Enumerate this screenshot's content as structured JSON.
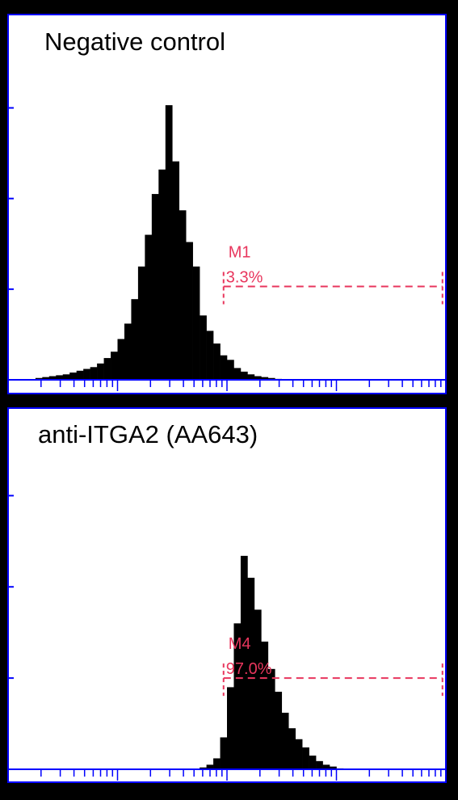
{
  "chart_data": [
    {
      "type": "histogram",
      "title": "Negative control",
      "color": "#000000",
      "frame_color": "#0000ff",
      "marker_color": "#e8365d",
      "bins": [
        64,
        80,
        96,
        112,
        128,
        144,
        160,
        176,
        192,
        208,
        224,
        240,
        256,
        272,
        288,
        304,
        320,
        336,
        352,
        368,
        384,
        400,
        416,
        432,
        448,
        464,
        480,
        496,
        512,
        528,
        544,
        560,
        576,
        592,
        608,
        624,
        640
      ],
      "values": [
        2,
        3,
        4,
        5,
        6,
        8,
        10,
        12,
        14,
        18,
        24,
        31,
        45,
        62,
        89,
        125,
        160,
        205,
        232,
        303,
        241,
        187,
        152,
        125,
        71,
        54,
        40,
        27,
        22,
        13,
        9,
        6,
        4,
        3,
        2,
        1
      ],
      "xlim": [
        0,
        1024
      ],
      "ylim": [
        0,
        403
      ],
      "yticks": [
        0,
        100,
        200,
        300
      ],
      "markers": [
        {
          "name": "M1",
          "percent": {
            "value": 3.3,
            "label": "3.3%"
          },
          "range": [
            504,
            1016
          ],
          "level": 103
        }
      ]
    },
    {
      "type": "histogram",
      "title": "anti-ITGA2 (AA643)",
      "color": "#000000",
      "frame_color": "#0000ff",
      "marker_color": "#e8365d",
      "bins": [
        448,
        464,
        480,
        496,
        512,
        528,
        544,
        560,
        576,
        592,
        608,
        624,
        640,
        656,
        672,
        688,
        704,
        720,
        736,
        752,
        768,
        784
      ],
      "values": [
        2,
        5,
        12,
        35,
        90,
        160,
        234,
        210,
        175,
        140,
        110,
        85,
        62,
        45,
        33,
        24,
        15,
        9,
        5,
        3,
        1
      ],
      "xlim": [
        0,
        1024
      ],
      "ylim": [
        0,
        396
      ],
      "yticks": [
        0,
        100,
        200,
        300
      ],
      "markers": [
        {
          "name": "M4",
          "percent": {
            "value": 97,
            "label": "97.0%"
          },
          "range": [
            504,
            1016
          ],
          "level": 100
        }
      ]
    }
  ]
}
